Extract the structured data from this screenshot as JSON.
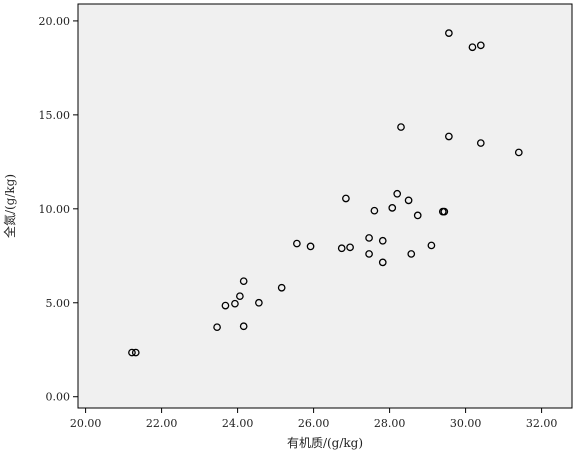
{
  "chart_data": {
    "type": "scatter",
    "title": "",
    "xlabel": "有机质/(g/kg)",
    "ylabel": "全氮/(g/kg)",
    "xlim": [
      19.8,
      32.8
    ],
    "ylim": [
      -0.6,
      20.9
    ],
    "xticks": [
      20,
      22,
      24,
      26,
      28,
      30,
      32
    ],
    "yticks": [
      0,
      5,
      10,
      15,
      20
    ],
    "xtick_labels": [
      "20.00",
      "22.00",
      "24.00",
      "26.00",
      "28.00",
      "30.00",
      "32.00"
    ],
    "ytick_labels": [
      "0.00",
      "5.00",
      "10.00",
      "15.00",
      "20.00"
    ],
    "grid": false,
    "marker": "open-circle",
    "colors": {
      "plot_background": "#f0f0f0",
      "axis": "#000000",
      "marker": "#000000"
    },
    "points": [
      {
        "x": 21.22,
        "y": 2.35
      },
      {
        "x": 21.32,
        "y": 2.35
      },
      {
        "x": 23.46,
        "y": 3.7
      },
      {
        "x": 24.16,
        "y": 3.75
      },
      {
        "x": 23.68,
        "y": 4.85
      },
      {
        "x": 23.93,
        "y": 4.95
      },
      {
        "x": 24.06,
        "y": 5.35
      },
      {
        "x": 24.56,
        "y": 5.0
      },
      {
        "x": 24.16,
        "y": 6.15
      },
      {
        "x": 25.16,
        "y": 5.8
      },
      {
        "x": 25.56,
        "y": 8.15
      },
      {
        "x": 25.92,
        "y": 8.0
      },
      {
        "x": 26.74,
        "y": 7.9
      },
      {
        "x": 26.96,
        "y": 7.95
      },
      {
        "x": 26.85,
        "y": 10.55
      },
      {
        "x": 27.46,
        "y": 8.45
      },
      {
        "x": 27.46,
        "y": 7.6
      },
      {
        "x": 27.6,
        "y": 9.9
      },
      {
        "x": 27.82,
        "y": 8.3
      },
      {
        "x": 27.82,
        "y": 7.15
      },
      {
        "x": 28.07,
        "y": 10.05
      },
      {
        "x": 28.2,
        "y": 10.8
      },
      {
        "x": 28.5,
        "y": 10.45
      },
      {
        "x": 28.57,
        "y": 7.6
      },
      {
        "x": 28.3,
        "y": 14.35
      },
      {
        "x": 28.74,
        "y": 9.65
      },
      {
        "x": 29.1,
        "y": 8.05
      },
      {
        "x": 29.4,
        "y": 9.85
      },
      {
        "x": 29.44,
        "y": 9.85
      },
      {
        "x": 29.56,
        "y": 13.85
      },
      {
        "x": 29.56,
        "y": 19.35
      },
      {
        "x": 30.18,
        "y": 18.6
      },
      {
        "x": 30.4,
        "y": 18.7
      },
      {
        "x": 30.4,
        "y": 13.5
      },
      {
        "x": 31.4,
        "y": 13.0
      }
    ]
  }
}
